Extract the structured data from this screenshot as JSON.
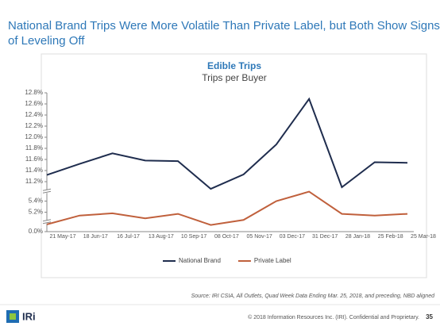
{
  "slide": {
    "title_line1": "National Brand Trips Were More Volatile Than Private Label, but Both Show Signs",
    "title_line2": "of Leveling Off",
    "source": "Source: IRI CSIA, All Outlets, Quad Week Data Ending Mar. 25, 2018, and preceding, NBD aligned",
    "logo": "IRi",
    "footer": "© 2018 Information Resources Inc. (IRI). Confidential and Proprietary.",
    "page": "35"
  },
  "chart_data": {
    "type": "line",
    "title": "Edible Trips",
    "subtitle": "Trips per Buyer",
    "categories": [
      "21 May-17",
      "18 Jun-17",
      "16 Jul-17",
      "13 Aug-17",
      "10 Sep-17",
      "08 Oct-17",
      "05 Nov-17",
      "03 Dec-17",
      "31 Dec-17",
      "28 Jan-18",
      "25 Feb-18",
      "25 Mar-18"
    ],
    "series": [
      {
        "name": "National Brand",
        "color": "#1f2d4e",
        "values": [
          11.32,
          11.52,
          11.71,
          11.58,
          11.57,
          11.07,
          11.33,
          11.87,
          12.69,
          11.1,
          11.55,
          11.54
        ]
      },
      {
        "name": "Private Label",
        "color": "#c0603c",
        "values": [
          4.98,
          5.14,
          5.18,
          5.09,
          5.17,
          4.97,
          5.06,
          5.4,
          5.57,
          5.17,
          5.14,
          5.17
        ]
      }
    ],
    "ylim": [
      0,
      12.8
    ],
    "yticks": [
      {
        "value": 0,
        "label": "0.0%"
      },
      {
        "value": 5.2,
        "label": "5.2%"
      },
      {
        "value": 5.4,
        "label": "5.4%"
      },
      {
        "value": 11.2,
        "label": "11.2%"
      },
      {
        "value": 11.4,
        "label": "11.4%"
      },
      {
        "value": 11.6,
        "label": "11.6%"
      },
      {
        "value": 11.8,
        "label": "11.8%"
      },
      {
        "value": 12.0,
        "label": "12.0%"
      },
      {
        "value": 12.2,
        "label": "12.2%"
      },
      {
        "value": 12.4,
        "label": "12.4%"
      },
      {
        "value": 12.6,
        "label": "12.6%"
      },
      {
        "value": 12.8,
        "label": "12.8%"
      }
    ],
    "axis_break": true,
    "legend": "bottom",
    "grid": false
  }
}
